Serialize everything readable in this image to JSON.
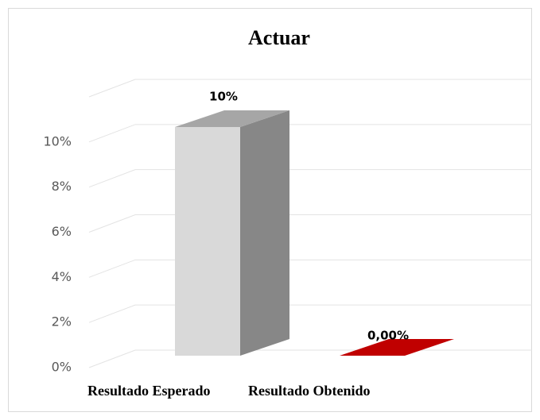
{
  "chart_data": {
    "type": "bar3d",
    "title": "Actuar",
    "categories": [
      "Resultado Esperado",
      "Resultado Obtenido"
    ],
    "values": [
      10,
      0
    ],
    "value_labels": [
      "10%",
      "0,00%"
    ],
    "colors": [
      "#d9d9d9",
      "#c00000"
    ],
    "ylim": [
      0,
      12
    ],
    "yticks": [
      {
        "value": 0,
        "label": "0%"
      },
      {
        "value": 2,
        "label": "2%"
      },
      {
        "value": 4,
        "label": "4%"
      },
      {
        "value": 6,
        "label": "6%"
      },
      {
        "value": 8,
        "label": "8%"
      },
      {
        "value": 10,
        "label": "10%"
      }
    ],
    "grid": true
  }
}
